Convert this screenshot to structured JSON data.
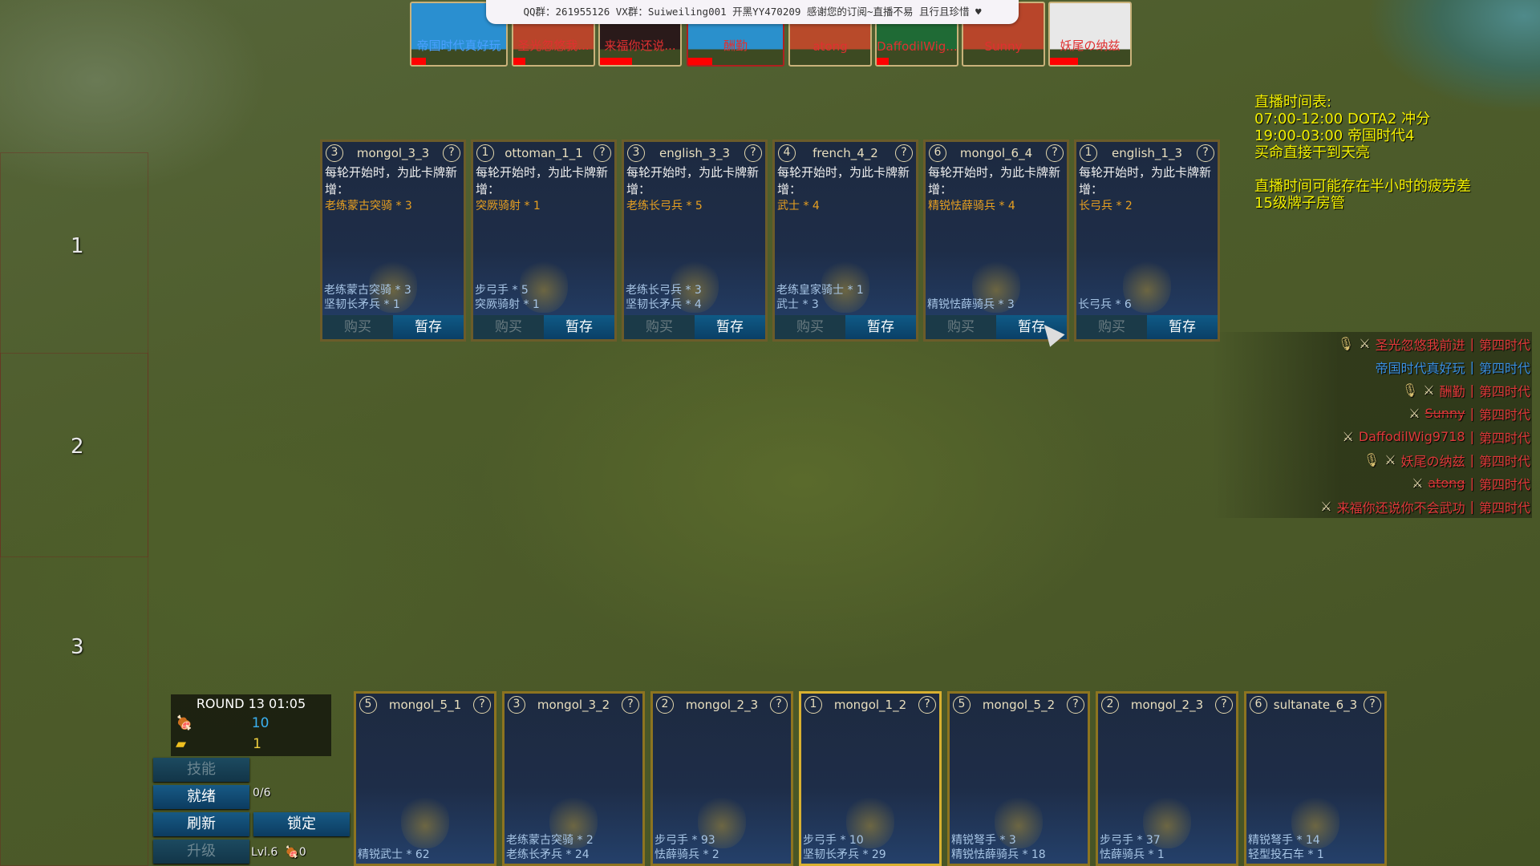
{
  "banner": {
    "text": "QQ群：261955126 VX群：Suiweiling001 开黑YY470209 感谢您的订阅~直播不易 且行且珍惜 ♥"
  },
  "players_top": [
    {
      "name": "帝国时代真好玩",
      "color": "#2a8fd0",
      "text_color": "#4aa0ff",
      "hp": 0.15,
      "active": false
    },
    {
      "name": "圣光忽悠我...",
      "color": "#b8452a",
      "text_color": "#e03030",
      "hp": 0.15,
      "active": false
    },
    {
      "name": "来福你还说...",
      "color": "#2a1a1a",
      "text_color": "#e03030",
      "hp": 0.4,
      "active": false
    },
    {
      "name": "酬勤",
      "color": "#2a90cc",
      "text_color": "#e03030",
      "hp": 0.25,
      "active": true
    },
    {
      "name": "atong",
      "color": "#b84a2a",
      "text_color": "#e03030",
      "hp": 0,
      "active": false
    },
    {
      "name": "DaffodilWig...",
      "color": "#1f6a35",
      "text_color": "#e03030",
      "hp": 0.15,
      "active": false
    },
    {
      "name": "Sunny",
      "color": "#b8452a",
      "text_color": "#e03030",
      "hp": 0,
      "active": false
    },
    {
      "name": "妖尾の纳兹",
      "color": "#e8e8e8",
      "text_color": "#e03030",
      "hp": 0.35,
      "active": false
    }
  ],
  "row_labels": [
    "1",
    "2",
    "3"
  ],
  "shop": {
    "desc": "每轮开始时，为此卡牌新增：",
    "buy_label": "购买",
    "hold_label": "暂存",
    "cards": [
      {
        "cost": "3",
        "name": "mongol_3_3",
        "gain": "老练蒙古突骑 * 3",
        "units": [
          "老练蒙古突骑 * 3",
          "坚韧长矛兵 * 1"
        ]
      },
      {
        "cost": "1",
        "name": "ottoman_1_1",
        "gain": "突厥骑射 * 1",
        "units": [
          "步弓手 * 5",
          "突厥骑射 * 1"
        ]
      },
      {
        "cost": "3",
        "name": "english_3_3",
        "gain": "老练长弓兵 * 5",
        "units": [
          "老练长弓兵 * 3",
          "坚韧长矛兵 * 4"
        ]
      },
      {
        "cost": "4",
        "name": "french_4_2",
        "gain": "武士 * 4",
        "units": [
          "老练皇家骑士 * 1",
          "武士 * 3"
        ]
      },
      {
        "cost": "6",
        "name": "mongol_6_4",
        "gain": "精锐怯薛骑兵 * 4",
        "units": [
          "精锐怯薛骑兵 * 3"
        ]
      },
      {
        "cost": "1",
        "name": "english_1_3",
        "gain": "长弓兵 * 2",
        "units": [
          "长弓兵 * 6"
        ]
      }
    ]
  },
  "bench": [
    {
      "cost": "5",
      "name": "mongol_5_1",
      "units": [
        "精锐武士 * 62"
      ]
    },
    {
      "cost": "3",
      "name": "mongol_3_2",
      "units": [
        "老练蒙古突骑 * 2",
        "老练长矛兵 * 24"
      ]
    },
    {
      "cost": "2",
      "name": "mongol_2_3",
      "units": [
        "步弓手 * 93",
        "怯薛骑兵 * 2"
      ]
    },
    {
      "cost": "1",
      "name": "mongol_1_2",
      "units": [
        "步弓手 * 10",
        "坚韧长矛兵 * 29"
      ]
    },
    {
      "cost": "5",
      "name": "mongol_5_2",
      "units": [
        "精锐弩手 * 3",
        "精锐怯薛骑兵 * 18"
      ]
    },
    {
      "cost": "2",
      "name": "mongol_2_3",
      "units": [
        "步弓手 * 37",
        "怯薛骑兵 * 1"
      ]
    },
    {
      "cost": "6",
      "name": "sultanate_6_3",
      "units": [
        "精锐弩手 * 14",
        "轻型投石车 * 1"
      ]
    }
  ],
  "schedule": {
    "lines": [
      "直播时间表:",
      "07:00-12:00 DOTA2 冲分",
      "19:00-03:00 帝国时代4",
      "买命直接干到天亮",
      "",
      "直播时间可能存在半小时的疲劳差",
      "15级牌子房管"
    ]
  },
  "player_list": [
    {
      "name": "圣光忽悠我前进",
      "age": "第四时代",
      "color": "#e03a3a",
      "mic": true,
      "swords": true,
      "strike": false
    },
    {
      "name": "帝国时代真好玩",
      "age": "第四时代",
      "color": "#3a8fe0",
      "mic": false,
      "swords": false,
      "strike": false
    },
    {
      "name": "酬勤",
      "age": "第四时代",
      "color": "#e03a3a",
      "mic": true,
      "swords": true,
      "strike": false
    },
    {
      "name": "Sunny",
      "age": "第四时代",
      "color": "#e03a3a",
      "mic": false,
      "swords": true,
      "strike": true
    },
    {
      "name": "DaffodilWig9718",
      "age": "第四时代",
      "color": "#e03a3a",
      "mic": false,
      "swords": true,
      "strike": false
    },
    {
      "name": "妖尾の纳兹",
      "age": "第四时代",
      "color": "#e03a3a",
      "mic": true,
      "swords": true,
      "strike": false
    },
    {
      "name": "atong",
      "age": "第四时代",
      "color": "#e03a3a",
      "mic": false,
      "swords": true,
      "strike": true
    },
    {
      "name": "来福你还说你不会武功",
      "age": "第四时代",
      "color": "#e03a3a",
      "mic": false,
      "swords": true,
      "strike": false
    }
  ],
  "status": {
    "round": "ROUND 13  01:05",
    "food": "10",
    "gold": "1",
    "ready_count": "0/6",
    "level": "Lvl.6",
    "upgrade_cost": "0"
  },
  "buttons": {
    "skill": "技能",
    "ready": "就绪",
    "refresh": "刷新",
    "lock": "锁定",
    "upgrade": "升级"
  }
}
